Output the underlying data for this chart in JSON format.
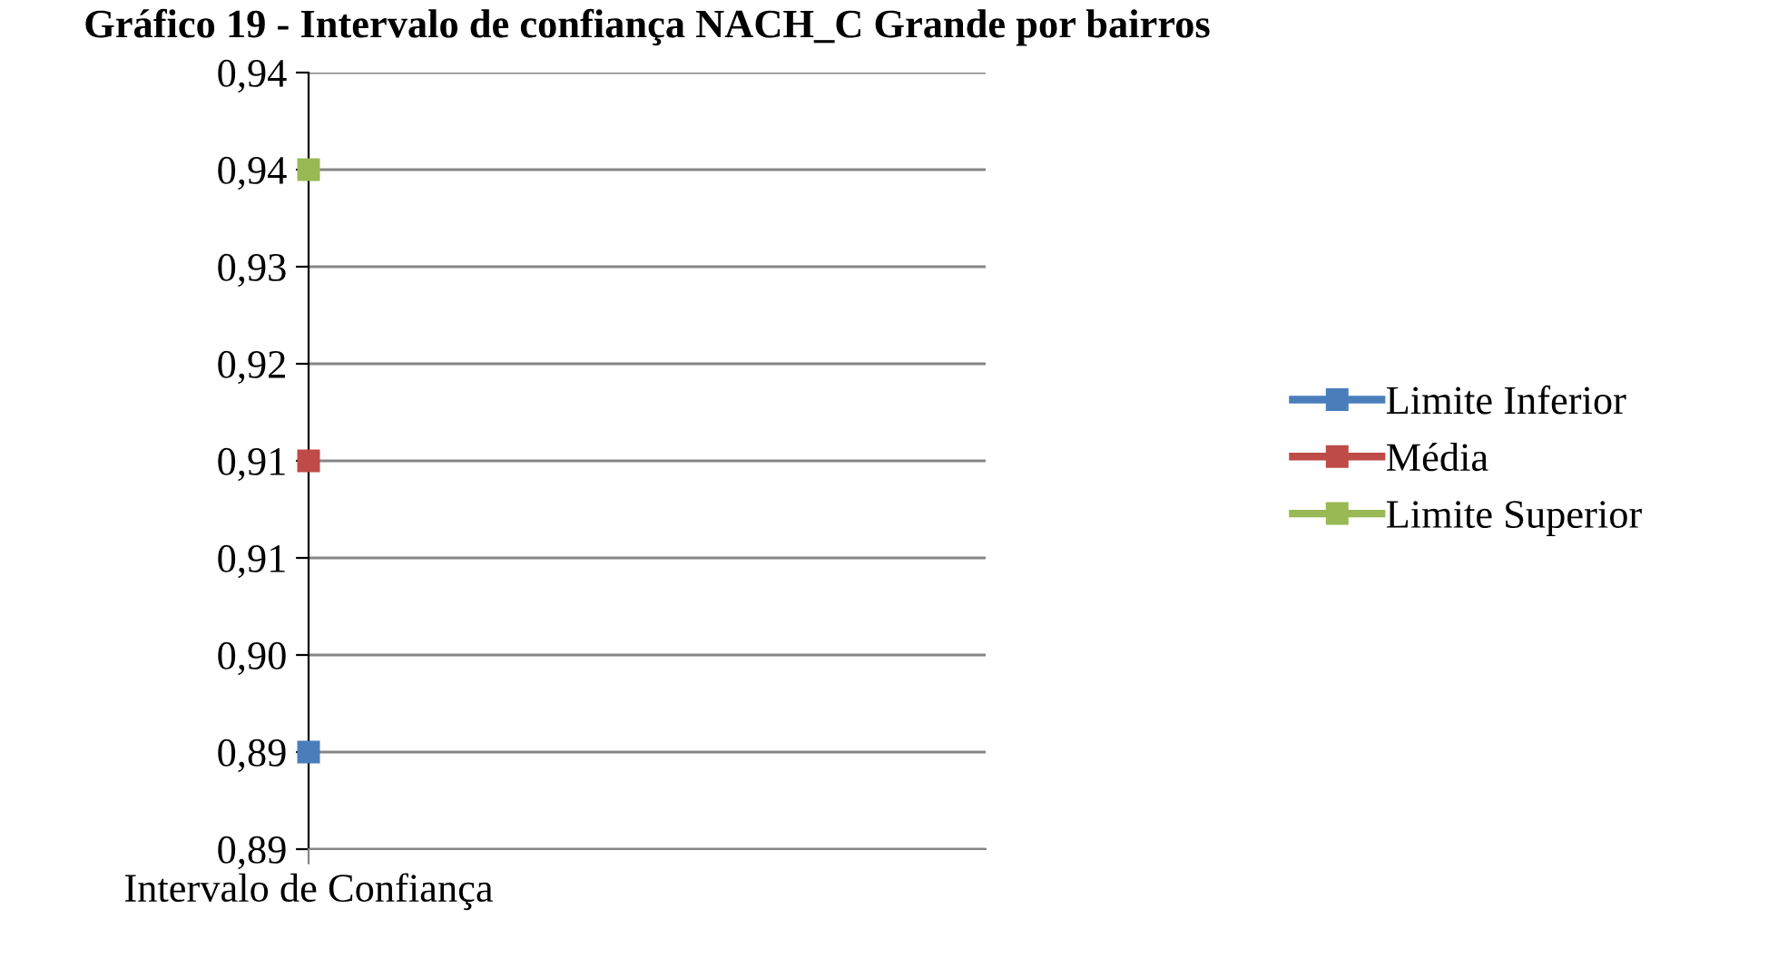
{
  "chart_data": {
    "type": "line",
    "title": "Gráfico 19 - Intervalo de confiança NACH_C Grande por bairros",
    "categories": [
      "Intervalo de Confiança"
    ],
    "series": [
      {
        "name": "Limite Inferior",
        "color": "#4a7ebb",
        "values": [
          0.893
        ]
      },
      {
        "name": "Média",
        "color": "#be4b48",
        "values": [
          0.914
        ]
      },
      {
        "name": "Limite Superior",
        "color": "#98b954",
        "values": [
          0.935
        ]
      }
    ],
    "ylim": [
      0.886,
      0.942
    ],
    "yticks": [
      {
        "value": 0.886,
        "label": "0,89"
      },
      {
        "value": 0.893,
        "label": "0,89"
      },
      {
        "value": 0.9,
        "label": "0,90"
      },
      {
        "value": 0.907,
        "label": "0,91"
      },
      {
        "value": 0.914,
        "label": "0,91"
      },
      {
        "value": 0.921,
        "label": "0,92"
      },
      {
        "value": 0.928,
        "label": "0,93"
      },
      {
        "value": 0.935,
        "label": "0,94"
      },
      {
        "value": 0.942,
        "label": "0,94"
      }
    ],
    "grid": "y",
    "legend": "right",
    "marker": "square"
  }
}
